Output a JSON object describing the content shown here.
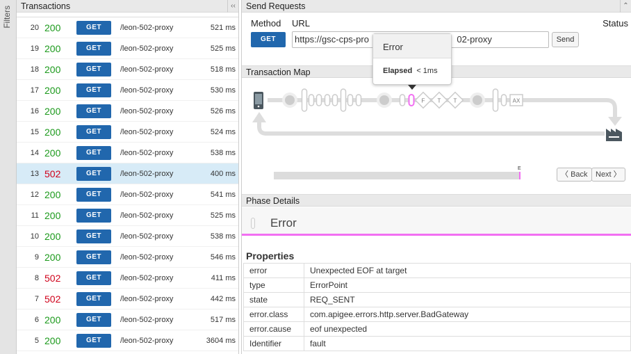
{
  "filters_label": "Filters",
  "transactions": {
    "title": "Transactions",
    "collapse_icon": "double-chevron-left",
    "rows": [
      {
        "n": "20",
        "status": "200",
        "method": "GET",
        "path": "/leon-502-proxy",
        "time": "521 ms"
      },
      {
        "n": "19",
        "status": "200",
        "method": "GET",
        "path": "/leon-502-proxy",
        "time": "525 ms"
      },
      {
        "n": "18",
        "status": "200",
        "method": "GET",
        "path": "/leon-502-proxy",
        "time": "518 ms"
      },
      {
        "n": "17",
        "status": "200",
        "method": "GET",
        "path": "/leon-502-proxy",
        "time": "530 ms"
      },
      {
        "n": "16",
        "status": "200",
        "method": "GET",
        "path": "/leon-502-proxy",
        "time": "526 ms"
      },
      {
        "n": "15",
        "status": "200",
        "method": "GET",
        "path": "/leon-502-proxy",
        "time": "524 ms"
      },
      {
        "n": "14",
        "status": "200",
        "method": "GET",
        "path": "/leon-502-proxy",
        "time": "538 ms"
      },
      {
        "n": "13",
        "status": "502",
        "method": "GET",
        "path": "/leon-502-proxy",
        "time": "400 ms",
        "selected": true
      },
      {
        "n": "12",
        "status": "200",
        "method": "GET",
        "path": "/leon-502-proxy",
        "time": "541 ms"
      },
      {
        "n": "11",
        "status": "200",
        "method": "GET",
        "path": "/leon-502-proxy",
        "time": "525 ms"
      },
      {
        "n": "10",
        "status": "200",
        "method": "GET",
        "path": "/leon-502-proxy",
        "time": "538 ms"
      },
      {
        "n": "9",
        "status": "200",
        "method": "GET",
        "path": "/leon-502-proxy",
        "time": "546 ms"
      },
      {
        "n": "8",
        "status": "502",
        "method": "GET",
        "path": "/leon-502-proxy",
        "time": "411 ms"
      },
      {
        "n": "7",
        "status": "502",
        "method": "GET",
        "path": "/leon-502-proxy",
        "time": "442 ms"
      },
      {
        "n": "6",
        "status": "200",
        "method": "GET",
        "path": "/leon-502-proxy",
        "time": "517 ms"
      },
      {
        "n": "5",
        "status": "200",
        "method": "GET",
        "path": "/leon-502-proxy",
        "time": "3604 ms"
      }
    ]
  },
  "send": {
    "title": "Send Requests",
    "method_label": "Method",
    "url_label": "URL",
    "status_label": "Status",
    "method": "GET",
    "url": "https://gsc-cps-pro                                   02-proxy",
    "send_label": "Send"
  },
  "tooltip": {
    "title": "Error",
    "elapsed_label": "Elapsed",
    "elapsed_value": "< 1ms"
  },
  "map": {
    "title": "Transaction Map",
    "nodes": {
      "f": "F",
      "t1": "T",
      "t2": "T",
      "ax": "AX"
    },
    "timeline_marker": "E",
    "back_label": "Back",
    "next_label": "Next",
    "accent": "#f26ff2"
  },
  "phase": {
    "title": "Phase Details",
    "name": "Error",
    "properties_title": "Properties",
    "properties": [
      {
        "k": "error",
        "v": "Unexpected EOF at target"
      },
      {
        "k": "type",
        "v": "ErrorPoint"
      },
      {
        "k": "state",
        "v": "REQ_SENT"
      },
      {
        "k": "error.class",
        "v": "com.apigee.errors.http.server.BadGateway"
      },
      {
        "k": "error.cause",
        "v": "eof unexpected"
      },
      {
        "k": "Identifier",
        "v": "fault"
      }
    ]
  },
  "colors": {
    "ok": "#1c9a1c",
    "error": "#d0021b",
    "method": "#2167ad",
    "selected_row": "#d7ebf7"
  }
}
